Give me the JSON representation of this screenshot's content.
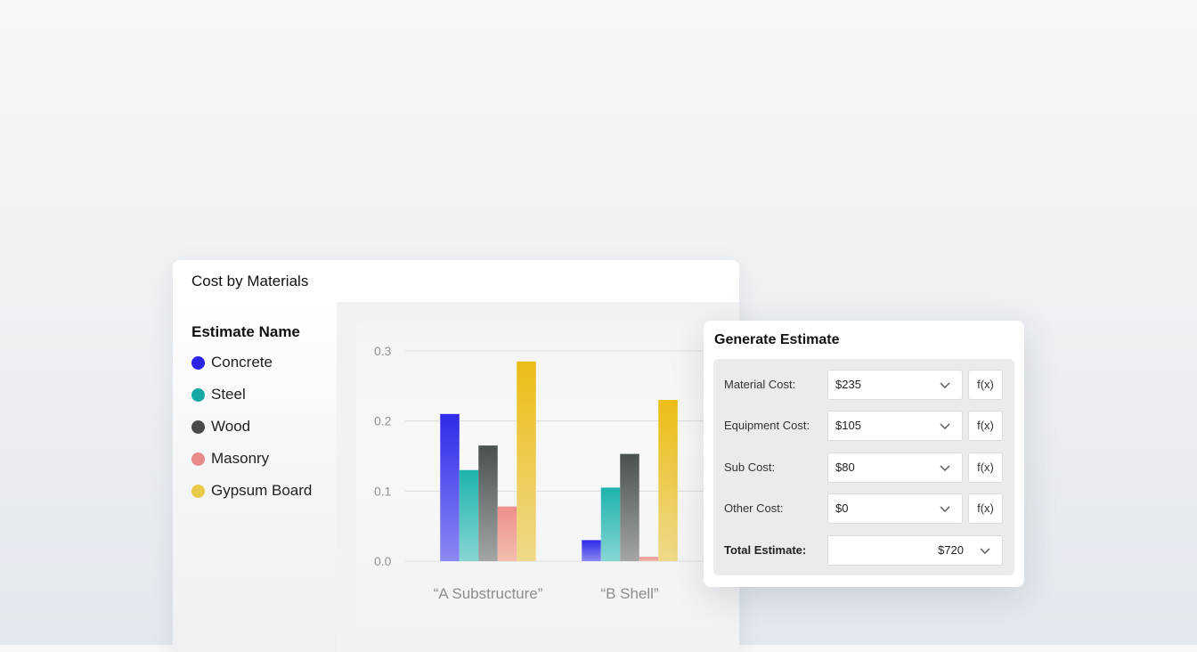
{
  "cost_by_materials": {
    "title": "Cost by Materials",
    "legend_title": "Estimate Name",
    "legend": [
      {
        "label": "Concrete",
        "color": "#2a25e6"
      },
      {
        "label": "Steel",
        "color": "#16a8a4"
      },
      {
        "label": "Wood",
        "color": "#4a4a4a"
      },
      {
        "label": "Masonry",
        "color": "#e88a8a"
      },
      {
        "label": "Gypsum Board",
        "color": "#e8c94a"
      }
    ]
  },
  "chart_data": {
    "type": "bar",
    "categories": [
      "“A Substructure”",
      "“B Shell”"
    ],
    "series": [
      {
        "name": "Concrete",
        "values": [
          0.21,
          0.03
        ],
        "color_top": "#2e2ae8",
        "color_bottom": "#8c88f4"
      },
      {
        "name": "Steel",
        "values": [
          0.13,
          0.105
        ],
        "color_top": "#1fb3ae",
        "color_bottom": "#86d6d3"
      },
      {
        "name": "Wood",
        "values": [
          0.165,
          0.153
        ],
        "color_top": "#4a5050",
        "color_bottom": "#a2a6a6"
      },
      {
        "name": "Masonry",
        "values": [
          0.078,
          0.006
        ],
        "color_top": "#ee8f8a",
        "color_bottom": "#f3bdb0"
      },
      {
        "name": "Gypsum Board",
        "values": [
          0.285,
          0.23
        ],
        "color_top": "#ecbd16",
        "color_bottom": "#efd98a"
      }
    ],
    "ylim": [
      0,
      0.3
    ],
    "yticks": [
      "0.0",
      "0.1",
      "0.2",
      "0.3"
    ],
    "grid": true,
    "xlabel": "",
    "ylabel": ""
  },
  "generate_estimate": {
    "title": "Generate Estimate",
    "fx_label": "f(x)",
    "rows": [
      {
        "label": "Material Cost:",
        "value": "$235"
      },
      {
        "label": "Equipment Cost:",
        "value": "$105"
      },
      {
        "label": "Sub Cost:",
        "value": "$80"
      },
      {
        "label": "Other Cost:",
        "value": "$0"
      }
    ],
    "total_label": "Total Estimate:",
    "total_value": "$720"
  }
}
